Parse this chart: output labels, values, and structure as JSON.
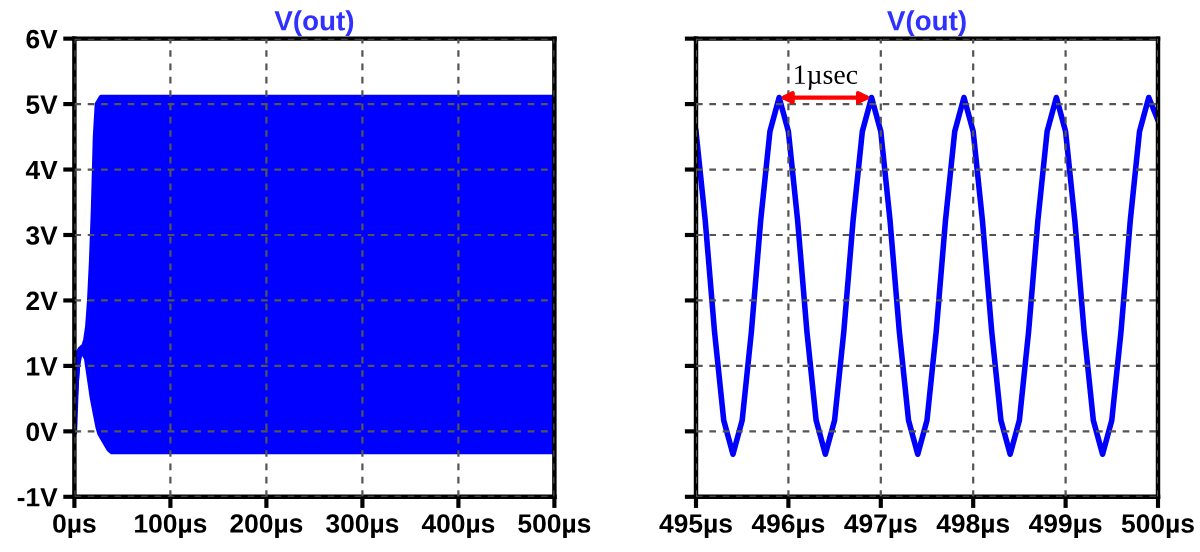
{
  "chart_data": [
    {
      "type": "line",
      "title": "V(out)",
      "xlim": [
        0,
        500
      ],
      "ylim": [
        -1,
        6
      ],
      "xticks": [
        {
          "value": 0,
          "label": "0µs"
        },
        {
          "value": 100,
          "label": "100µs"
        },
        {
          "value": 200,
          "label": "200µs"
        },
        {
          "value": 300,
          "label": "300µs"
        },
        {
          "value": 400,
          "label": "400µs"
        },
        {
          "value": 500,
          "label": "500µs"
        }
      ],
      "yticks": [
        {
          "value": -1,
          "label": "-1V"
        },
        {
          "value": 0,
          "label": "0V"
        },
        {
          "value": 1,
          "label": "1V"
        },
        {
          "value": 2,
          "label": "2V"
        },
        {
          "value": 3,
          "label": "3V"
        },
        {
          "value": 4,
          "label": "4V"
        },
        {
          "value": 5,
          "label": "5V"
        },
        {
          "value": 6,
          "label": "6V"
        }
      ],
      "grid": true,
      "legend": false,
      "marker": "none",
      "line_style": "solid",
      "series": [
        {
          "color": "#0000ff",
          "x": [
            0,
            2,
            4,
            6,
            8,
            10,
            12,
            14,
            16,
            18,
            20,
            22,
            24,
            26,
            28,
            30,
            34,
            38,
            42,
            100,
            200,
            300,
            400,
            500
          ],
          "values": [
            0,
            0.8,
            1.2,
            1.25,
            1.28,
            1.3,
            1.4,
            1.6,
            2.0,
            2.6,
            3.4,
            4.5,
            5.0,
            5.05,
            5.1,
            5.1,
            5.1,
            5.1,
            5.1,
            5.1,
            5.1,
            5.1,
            5.1,
            5.1
          ],
          "upper": [
            0,
            0.8,
            1.2,
            1.25,
            1.28,
            1.3,
            1.4,
            1.6,
            2.0,
            2.6,
            3.4,
            4.5,
            5.0,
            5.05,
            5.1,
            5.1,
            5.1,
            5.1,
            5.1,
            5.1,
            5.1,
            5.1,
            5.1,
            5.1
          ],
          "lower": [
            0,
            0.2,
            0.6,
            1.0,
            1.15,
            1.1,
            0.9,
            0.7,
            0.5,
            0.35,
            0.2,
            0.05,
            -0.05,
            -0.1,
            -0.15,
            -0.2,
            -0.3,
            -0.35,
            -0.35,
            -0.35,
            -0.35,
            -0.35,
            -0.35,
            -0.35
          ]
        }
      ]
    },
    {
      "type": "line",
      "title": "V(out)",
      "xlim": [
        495,
        500
      ],
      "ylim": [
        -1,
        6
      ],
      "xticks": [
        {
          "value": 495,
          "label": "495µs"
        },
        {
          "value": 496,
          "label": "496µs"
        },
        {
          "value": 497,
          "label": "497µs"
        },
        {
          "value": 498,
          "label": "498µs"
        },
        {
          "value": 499,
          "label": "499µs"
        },
        {
          "value": 500,
          "label": "500µs"
        }
      ],
      "yticks": [
        {
          "value": -1,
          "label": null
        },
        {
          "value": 0,
          "label": null
        },
        {
          "value": 1,
          "label": null
        },
        {
          "value": 2,
          "label": null
        },
        {
          "value": 3,
          "label": null
        },
        {
          "value": 4,
          "label": null
        },
        {
          "value": 5,
          "label": null
        },
        {
          "value": 6,
          "label": null
        }
      ],
      "tick_labels": "x",
      "grid": true,
      "legend": false,
      "marker": "none",
      "line_style": "solid",
      "annotations": [
        "1µsec"
      ],
      "series": [
        {
          "color": "#0000ff",
          "x": [
            495.0,
            495.1,
            495.2,
            495.3,
            495.4,
            495.5,
            495.6,
            495.7,
            495.8,
            495.9,
            496.0,
            496.1,
            496.2,
            496.3,
            496.4,
            496.5,
            496.6,
            496.7,
            496.8,
            496.9,
            497.0,
            497.1,
            497.2,
            497.3,
            497.4,
            497.5,
            497.6,
            497.7,
            497.8,
            497.9,
            498.0,
            498.1,
            498.2,
            498.3,
            498.4,
            498.5,
            498.6,
            498.7,
            498.8,
            498.9,
            499.0,
            499.1,
            499.2,
            499.3,
            499.4,
            499.5,
            499.6,
            499.7,
            499.8,
            499.9,
            500.0
          ],
          "values": [
            4.58,
            3.22,
            1.53,
            0.17,
            -0.35,
            0.17,
            1.53,
            3.22,
            4.58,
            5.1,
            4.58,
            3.22,
            1.53,
            0.17,
            -0.35,
            0.17,
            1.53,
            3.22,
            4.58,
            5.1,
            4.58,
            3.22,
            1.53,
            0.17,
            -0.35,
            0.17,
            1.53,
            3.22,
            4.58,
            5.1,
            4.58,
            3.22,
            1.53,
            0.17,
            -0.35,
            0.17,
            1.53,
            3.22,
            4.58,
            5.1,
            4.58,
            3.22,
            1.53,
            0.17,
            -0.35,
            0.17,
            1.53,
            3.22,
            4.58,
            5.1,
            4.75
          ]
        }
      ]
    }
  ]
}
